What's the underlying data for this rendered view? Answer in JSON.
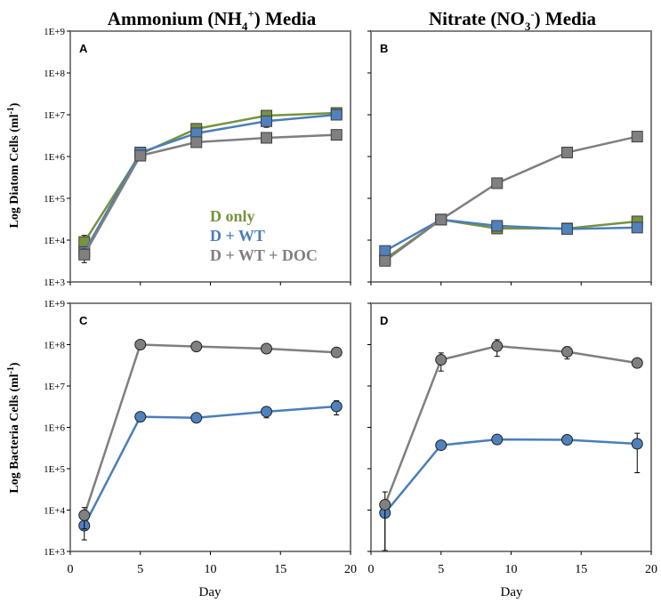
{
  "titles": {
    "left": {
      "prefix": "Ammonium (NH",
      "sub": "4",
      "sup": "+",
      "suffix": ") Media"
    },
    "right": {
      "prefix": "Nitrate (NO",
      "sub": "3",
      "sup": "-",
      "suffix": ") Media"
    }
  },
  "ylabels": {
    "top": {
      "text": "Log Diatom Cells (ml",
      "sup": "-1",
      "end": ")"
    },
    "bottom": {
      "text": "Log Bacteria Cells (ml",
      "sup": "-1",
      "end": ")"
    }
  },
  "xlabel": "Day",
  "legend": [
    {
      "label": "D only",
      "color": "#77933c"
    },
    {
      "label": "D + WT",
      "color": "#4a7ebb"
    },
    {
      "label": "D + WT + DOC",
      "color": "#7f7f7f"
    }
  ],
  "colors": {
    "green": "#77933c",
    "blue": "#4a7ebb",
    "gray": "#7f7f7f",
    "green_fill": "#77933c",
    "blue_fill": "#4f81bd",
    "gray_fill": "#808080"
  },
  "chart_data": [
    {
      "panel": "A",
      "type": "line",
      "marker": "square",
      "title": "Ammonium (NH4+) Media",
      "ylabel": "Log Diatom Cells (ml-1)",
      "yscale": "log",
      "ylim": [
        1000,
        1000000000
      ],
      "xlim": [
        0,
        20
      ],
      "yticks": [
        "1E+3",
        "1E+4",
        "1E+5",
        "1E+6",
        "1E+7",
        "1E+8",
        "1E+9"
      ],
      "x": [
        1,
        5,
        9,
        14,
        19
      ],
      "series": [
        {
          "name": "D only",
          "color": "green",
          "values": [
            9000,
            1150000,
            4600000,
            9500000,
            11000000
          ],
          "err": [
            4000,
            0,
            900000,
            3000000,
            0
          ]
        },
        {
          "name": "D + WT",
          "color": "blue",
          "values": [
            5200,
            1250000,
            3600000,
            7000000,
            10000000
          ],
          "err": [
            0,
            0,
            900000,
            2000000,
            1200000
          ]
        },
        {
          "name": "D + WT + DOC",
          "color": "gray",
          "values": [
            4500,
            1050000,
            2200000,
            2800000,
            3300000
          ],
          "err": [
            1600,
            0,
            0,
            0,
            0
          ]
        }
      ]
    },
    {
      "panel": "B",
      "type": "line",
      "marker": "square",
      "title": "Nitrate (NO3-) Media",
      "yscale": "log",
      "ylim": [
        1000,
        1000000000
      ],
      "xlim": [
        0,
        20
      ],
      "x": [
        1,
        5,
        9,
        14,
        19
      ],
      "series": [
        {
          "name": "D only",
          "color": "green",
          "values": [
            3500,
            31000,
            19000,
            19000,
            28000
          ],
          "err": [
            0,
            0,
            0,
            0,
            0
          ]
        },
        {
          "name": "D + WT",
          "color": "blue",
          "values": [
            5500,
            31000,
            22000,
            18500,
            20000
          ],
          "err": [
            0,
            0,
            0,
            0,
            0
          ]
        },
        {
          "name": "D + WT + DOC",
          "color": "gray",
          "values": [
            3200,
            31000,
            230000,
            1250000,
            3000000
          ],
          "err": [
            0,
            0,
            0,
            0,
            0
          ]
        }
      ]
    },
    {
      "panel": "C",
      "type": "line",
      "marker": "circle",
      "ylabel": "Log Bacteria Cells (ml-1)",
      "xlabel": "Day",
      "yscale": "log",
      "ylim": [
        1000,
        1000000000
      ],
      "xlim": [
        0,
        20
      ],
      "xticks": [
        0,
        5,
        10,
        15,
        20
      ],
      "x": [
        1,
        5,
        9,
        14,
        19
      ],
      "series": [
        {
          "name": "D + WT",
          "color": "blue",
          "values": [
            4200,
            1800000,
            1700000,
            2400000,
            3200000
          ],
          "err": [
            2300,
            0,
            0,
            700000,
            1200000
          ]
        },
        {
          "name": "D + WT + DOC",
          "color": "gray",
          "values": [
            7500,
            100000000,
            90000000,
            80000000,
            65000000
          ],
          "err": [
            4000,
            0,
            0,
            0,
            0
          ]
        }
      ]
    },
    {
      "panel": "D",
      "type": "line",
      "marker": "circle",
      "xlabel": "Day",
      "yscale": "log",
      "ylim": [
        1000,
        1000000000
      ],
      "xlim": [
        0,
        20
      ],
      "xticks": [
        0,
        5,
        10,
        15,
        20
      ],
      "x": [
        1,
        5,
        9,
        14,
        19
      ],
      "series": [
        {
          "name": "D + WT",
          "color": "blue",
          "values": [
            8500,
            370000,
            510000,
            500000,
            400000
          ],
          "err": [
            8000,
            0,
            0,
            0,
            320000
          ]
        },
        {
          "name": "D + WT + DOC",
          "color": "gray",
          "values": [
            13500,
            43000000,
            92000000,
            67000000,
            36000000
          ],
          "err": [
            14000,
            20000000,
            40000000,
            22000000,
            0
          ]
        }
      ]
    }
  ]
}
